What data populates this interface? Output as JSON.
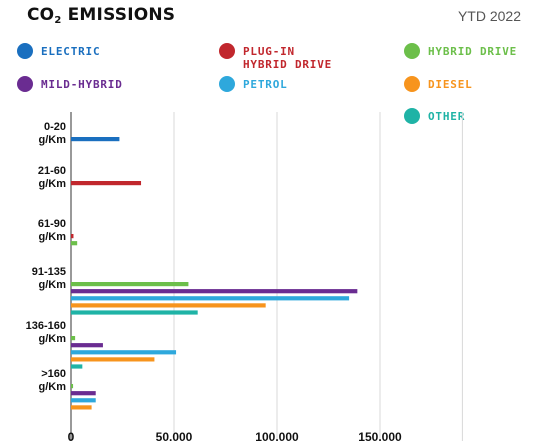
{
  "header": {
    "title_main": "CO",
    "title_sub": "2",
    "title_rest": " EMISSIONS",
    "period": "YTD 2022"
  },
  "legend": [
    {
      "label": "ELECTRIC",
      "color": "#1a6fbf",
      "text_color": "#1a6fbf"
    },
    {
      "label": "PLUG-IN\nHYBRID DRIVE",
      "color": "#c1272d",
      "text_color": "#c1272d"
    },
    {
      "label": "HYBRID DRIVE",
      "color": "#6cbf4a",
      "text_color": "#6cbf4a"
    },
    {
      "label": "MILD-HYBRID",
      "color": "#6a2c91",
      "text_color": "#6a2c91"
    },
    {
      "label": "PETROL",
      "color": "#2ea8dc",
      "text_color": "#2ea8dc"
    },
    {
      "label": "DIESEL",
      "color": "#f7941d",
      "text_color": "#f7941d"
    },
    {
      "label": "OTHER",
      "color": "#1fb3a6",
      "text_color": "#1fb3a6"
    }
  ],
  "chart_data": {
    "type": "bar",
    "orientation": "horizontal",
    "categories": [
      "0-20\ng/Km",
      "21-60\ng/Km",
      "61-90\ng/Km",
      "91-135\ng/Km",
      "136-160\ng/Km",
      ">160\ng/Km"
    ],
    "xlim": [
      0,
      190000
    ],
    "x_ticks": [
      0,
      50000,
      100000,
      150000
    ],
    "x_tick_labels": [
      "0",
      "50.000",
      "100.000",
      "150.000"
    ],
    "grid": true,
    "legend_position": "top",
    "series": [
      {
        "name": "ELECTRIC",
        "color": "#1a6fbf",
        "values": [
          23500,
          0,
          0,
          0,
          0,
          0
        ]
      },
      {
        "name": "PLUG-IN HYBRID DRIVE",
        "color": "#c1272d",
        "values": [
          0,
          34000,
          1200,
          0,
          0,
          0
        ]
      },
      {
        "name": "HYBRID DRIVE",
        "color": "#6cbf4a",
        "values": [
          0,
          0,
          3000,
          57000,
          2000,
          1000
        ]
      },
      {
        "name": "MILD-HYBRID",
        "color": "#6a2c91",
        "values": [
          0,
          0,
          0,
          139000,
          15500,
          12000
        ]
      },
      {
        "name": "PETROL",
        "color": "#2ea8dc",
        "values": [
          0,
          0,
          0,
          135000,
          51000,
          12000
        ]
      },
      {
        "name": "DIESEL",
        "color": "#f7941d",
        "values": [
          0,
          0,
          0,
          94500,
          40500,
          10000
        ]
      },
      {
        "name": "OTHER",
        "color": "#1fb3a6",
        "values": [
          0,
          0,
          0,
          61500,
          5500,
          0
        ]
      }
    ]
  }
}
